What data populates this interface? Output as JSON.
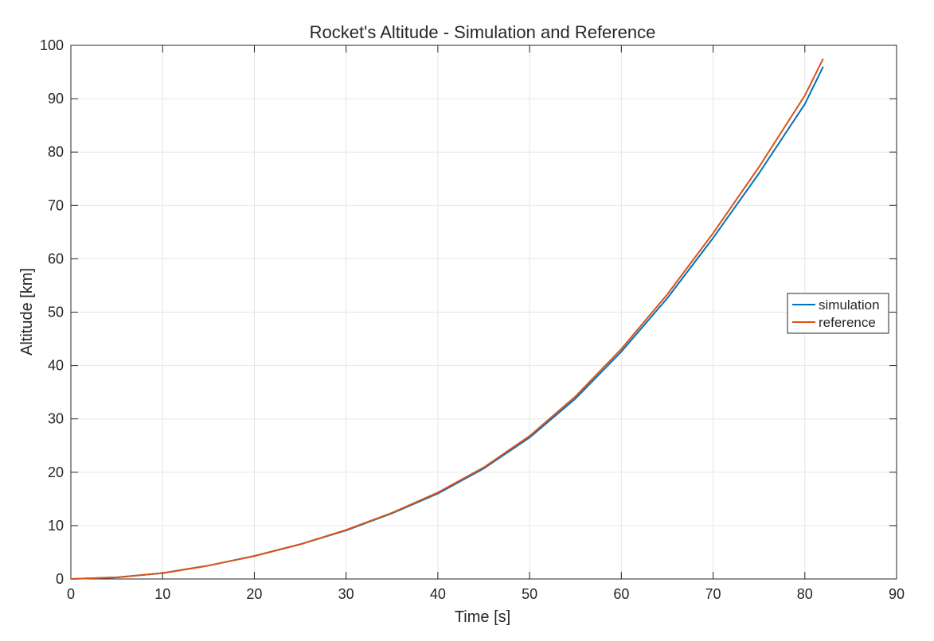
{
  "chart_data": {
    "type": "line",
    "title": "Rocket's Altitude - Simulation and Reference",
    "xlabel": "Time [s]",
    "ylabel": "Altitude [km]",
    "xlim": [
      0,
      90
    ],
    "ylim": [
      0,
      100
    ],
    "xticks": [
      0,
      10,
      20,
      30,
      40,
      50,
      60,
      70,
      80,
      90
    ],
    "yticks": [
      0,
      10,
      20,
      30,
      40,
      50,
      60,
      70,
      80,
      90,
      100
    ],
    "grid": true,
    "legend_position": "right",
    "series": [
      {
        "name": "simulation",
        "color": "#0072BD",
        "x": [
          0,
          5,
          10,
          15,
          20,
          25,
          30,
          35,
          40,
          45,
          50,
          55,
          60,
          65,
          70,
          75,
          80,
          82
        ],
        "y": [
          0,
          0.3,
          1.1,
          2.5,
          4.3,
          6.5,
          9.1,
          12.3,
          16.0,
          20.7,
          26.5,
          33.8,
          42.6,
          52.6,
          63.9,
          76.0,
          89.0,
          96.0
        ]
      },
      {
        "name": "reference",
        "color": "#D95319",
        "x": [
          0,
          5,
          10,
          15,
          20,
          25,
          30,
          35,
          40,
          45,
          50,
          55,
          60,
          65,
          70,
          75,
          80,
          82
        ],
        "y": [
          0,
          0.3,
          1.1,
          2.5,
          4.3,
          6.5,
          9.2,
          12.4,
          16.2,
          20.9,
          26.8,
          34.2,
          43.1,
          53.3,
          64.8,
          77.2,
          90.6,
          97.5
        ]
      }
    ]
  }
}
